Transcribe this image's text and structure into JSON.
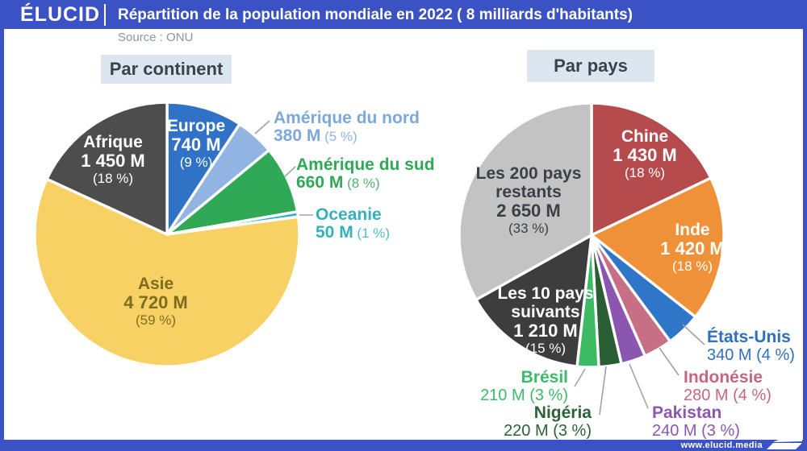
{
  "header": {
    "logo": "ÉLUCID",
    "title": "Répartition de la population mondiale en 2022 ( 8 milliards d'habitants)"
  },
  "source": "Source : ONU",
  "footer": {
    "url": "www.elucid.media"
  },
  "colors": {
    "brand": "#3a52c3",
    "section_label_bg": "#dce6f1",
    "section_label_text": "#3c4249",
    "source_text": "#8d959c",
    "leader_line": "#9fa3a8",
    "slice_gap": "#ffffff"
  },
  "chart_data": [
    {
      "type": "pie",
      "title": "Par continent",
      "units": "millions d'habitants (M)",
      "total": 8000,
      "slices": [
        {
          "name": "Europe",
          "value": 740,
          "value_label": "740 M",
          "pct_label": "(9 %)",
          "color": "#2f72c6",
          "text_color": "#ffffff"
        },
        {
          "name": "Amérique du nord",
          "value": 380,
          "value_label": "380 M",
          "pct_label": "(5 %)",
          "color": "#92b4e3",
          "text_color": "#7da8dc"
        },
        {
          "name": "Amérique du sud",
          "value": 660,
          "value_label": "660 M",
          "pct_label": "(8 %)",
          "color": "#2fa956",
          "text_color": "#2fa956"
        },
        {
          "name": "Oceanie",
          "value": 50,
          "value_label": "50 M",
          "pct_label": "(1 %)",
          "color": "#31b2c3",
          "text_color": "#35b0bf"
        },
        {
          "name": "Asie",
          "value": 4720,
          "value_label": "4 720 M",
          "pct_label": "(59 %)",
          "color": "#f8d165",
          "text_color": "#7c6d20"
        },
        {
          "name": "Afrique",
          "value": 1450,
          "value_label": "1 450 M",
          "pct_label": "(18 %)",
          "color": "#4d4d4d",
          "text_color": "#ffffff"
        }
      ]
    },
    {
      "type": "pie",
      "title": "Par pays",
      "units": "millions d'habitants (M)",
      "total": 8000,
      "slices": [
        {
          "name": "Chine",
          "value": 1430,
          "value_label": "1 430 M",
          "pct_label": "(18 %)",
          "color": "#b54b4d",
          "text_color": "#ffffff"
        },
        {
          "name": "Inde",
          "value": 1420,
          "value_label": "1 420 M",
          "pct_label": "(18 %)",
          "color": "#ef9138",
          "text_color": "#ffffff"
        },
        {
          "name": "États-Unis",
          "value": 340,
          "value_label": "340 M",
          "pct_label": "(4 %)",
          "color": "#3076c8",
          "text_color": "#2f6fc0"
        },
        {
          "name": "Indonésie",
          "value": 280,
          "value_label": "280 M",
          "pct_label": "(4 %)",
          "color": "#c66f85",
          "text_color": "#c5677f"
        },
        {
          "name": "Pakistan",
          "value": 240,
          "value_label": "240 M",
          "pct_label": "(3 %)",
          "color": "#8a56b0",
          "text_color": "#8d56b2"
        },
        {
          "name": "Nigéria",
          "value": 220,
          "value_label": "220 M",
          "pct_label": "(3 %)",
          "color": "#2a5e35",
          "text_color": "#2b6337"
        },
        {
          "name": "Brésil",
          "value": 210,
          "value_label": "210 M",
          "pct_label": "(3 %)",
          "color": "#3cba64",
          "text_color": "#3dbb68"
        },
        {
          "name": "Les 10 pays suivants",
          "name_lines": [
            "Les 10 pays",
            "suivants"
          ],
          "value": 1210,
          "value_label": "1 210 M",
          "pct_label": "(15 %)",
          "color": "#3d3d3d",
          "text_color": "#ffffff"
        },
        {
          "name": "Les 200 pays restants",
          "name_lines": [
            "Les 200 pays",
            "restants"
          ],
          "value": 2650,
          "value_label": "2 650 M",
          "pct_label": "(33 %)",
          "color": "#c3c3c3",
          "text_color": "#3b4046"
        }
      ]
    }
  ]
}
